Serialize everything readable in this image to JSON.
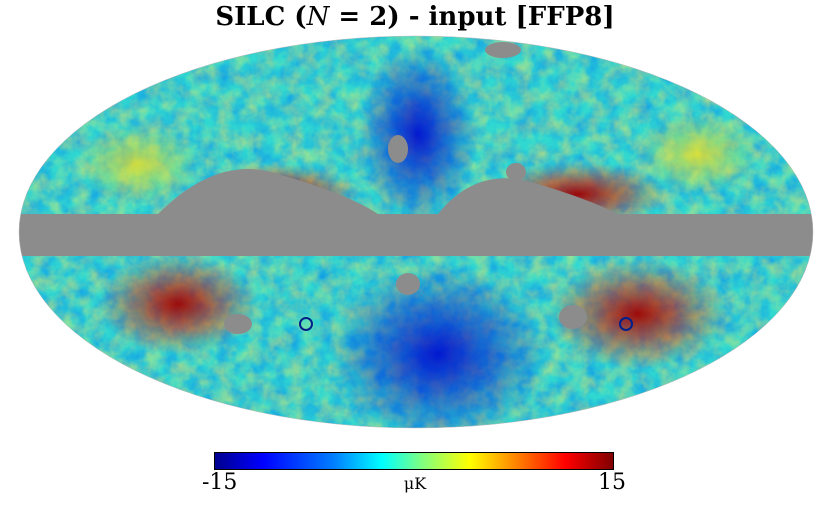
{
  "title": {
    "prefix": "SILC (",
    "math": "N",
    "middle": " = 2)",
    "suffix": " - input [FFP8]"
  },
  "colorbar": {
    "min_label": "-15",
    "max_label": "15",
    "unit": "μK"
  },
  "colors": {
    "mask": "#8c8c8c",
    "cold": "#0000cc",
    "hot": "#990000"
  },
  "image": {
    "projection": "Mollweide"
  }
}
